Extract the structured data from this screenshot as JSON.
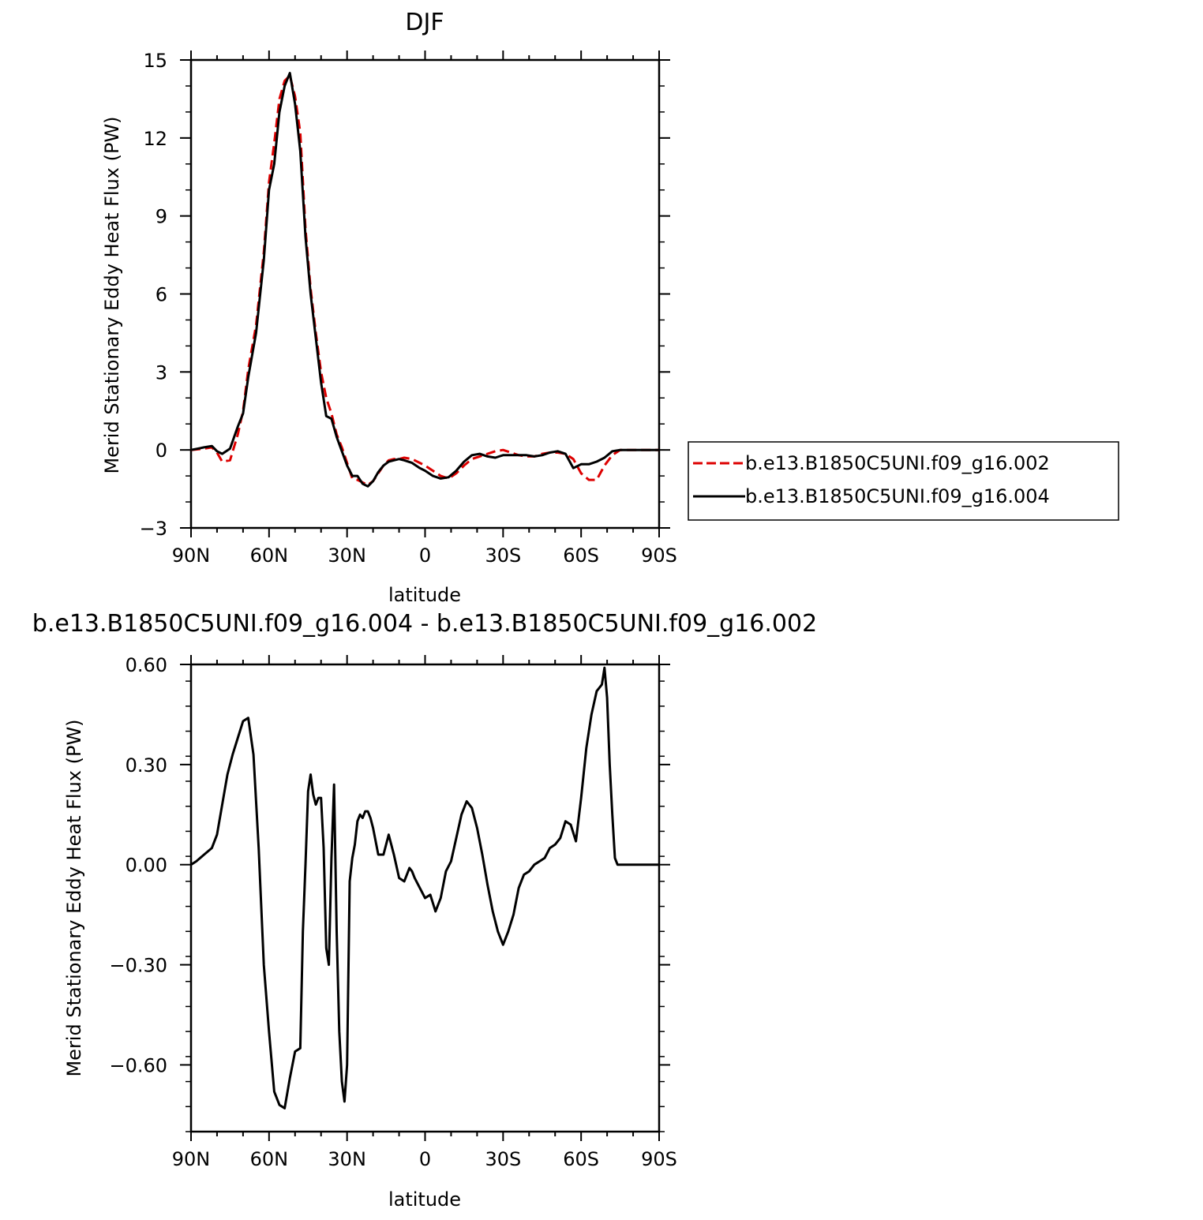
{
  "charts": [
    {
      "title": "DJF",
      "xlabel": "latitude",
      "ylabel": "Merid Stationary Eddy Heat Flux (PW)",
      "xticks": [
        "90N",
        "60N",
        "30N",
        "0",
        "30S",
        "60S",
        "90S"
      ],
      "yticks": [
        "-3",
        "0",
        "3",
        "6",
        "9",
        "12",
        "15"
      ]
    },
    {
      "title": "b.e13.B1850C5UNI.f09_g16.004 - b.e13.B1850C5UNI.f09_g16.002",
      "xlabel": "latitude",
      "ylabel": "Merid Stationary Eddy Heat Flux (PW)",
      "xticks": [
        "90N",
        "60N",
        "30N",
        "0",
        "30S",
        "60S",
        "90S"
      ],
      "yticks": [
        "-0.60",
        "-0.30",
        "0.00",
        "0.30",
        "0.60"
      ]
    }
  ],
  "legend": {
    "items": [
      {
        "label": "b.e13.B1850C5UNI.f09_g16.002",
        "color": "#dd0000",
        "dash": "dashed"
      },
      {
        "label": "b.e13.B1850C5UNI.f09_g16.004",
        "color": "#000000",
        "dash": "solid"
      }
    ]
  },
  "chart_data": [
    {
      "type": "line",
      "title": "DJF",
      "xlabel": "latitude",
      "ylabel": "Merid Stationary Eddy Heat Flux (PW)",
      "xlim": [
        90,
        -90
      ],
      "ylim": [
        -3,
        15
      ],
      "legend_position": "right",
      "series": [
        {
          "name": "b.e13.B1850C5UNI.f09_g16.002",
          "color": "#dd0000",
          "dash": "dashed",
          "x": [
            90,
            85,
            82,
            80,
            78,
            75,
            72,
            70,
            68,
            65,
            62,
            60,
            58,
            56,
            54,
            52,
            50,
            48,
            46,
            44,
            42,
            40,
            38,
            36,
            34,
            32,
            30,
            28,
            26,
            24,
            22,
            20,
            18,
            16,
            14,
            12,
            10,
            8,
            5,
            2,
            0,
            -3,
            -6,
            -9,
            -12,
            -15,
            -18,
            -21,
            -24,
            -27,
            -30,
            -33,
            -36,
            -39,
            -42,
            -45,
            -48,
            -51,
            -54,
            -57,
            -60,
            -63,
            -66,
            -69,
            -72,
            -75,
            -78,
            -81,
            -84,
            -87,
            -90
          ],
          "y": [
            0,
            0.05,
            0.1,
            -0.1,
            -0.45,
            -0.4,
            0.6,
            1.5,
            3.1,
            4.8,
            7.6,
            10.3,
            11.8,
            13.5,
            14.2,
            14.4,
            13.6,
            12.2,
            8.5,
            6.2,
            4.5,
            3.0,
            2.0,
            1.4,
            0.6,
            0.1,
            -0.5,
            -1.1,
            -1.15,
            -1.25,
            -1.35,
            -1.2,
            -0.9,
            -0.6,
            -0.4,
            -0.35,
            -0.35,
            -0.3,
            -0.35,
            -0.5,
            -0.6,
            -0.8,
            -1.0,
            -1.1,
            -0.9,
            -0.6,
            -0.35,
            -0.25,
            -0.15,
            -0.05,
            0.0,
            -0.1,
            -0.2,
            -0.25,
            -0.25,
            -0.15,
            -0.1,
            -0.1,
            -0.15,
            -0.35,
            -0.9,
            -1.15,
            -1.15,
            -0.6,
            -0.2,
            0.0,
            0.0,
            0.0,
            0.0,
            0.0,
            0.0
          ]
        },
        {
          "name": "b.e13.B1850C5UNI.f09_g16.004",
          "color": "#000000",
          "dash": "solid",
          "x": [
            90,
            85,
            82,
            80,
            78,
            75,
            72,
            70,
            68,
            65,
            62,
            60,
            58,
            56,
            54,
            52,
            50,
            48,
            46,
            44,
            42,
            40,
            38,
            36,
            34,
            32,
            30,
            28,
            26,
            24,
            22,
            20,
            18,
            16,
            14,
            12,
            10,
            8,
            5,
            2,
            0,
            -3,
            -6,
            -9,
            -12,
            -15,
            -18,
            -21,
            -24,
            -27,
            -30,
            -33,
            -36,
            -39,
            -42,
            -45,
            -48,
            -51,
            -54,
            -57,
            -60,
            -63,
            -66,
            -69,
            -72,
            -75,
            -78,
            -81,
            -84,
            -87,
            -90
          ],
          "y": [
            0,
            0.1,
            0.15,
            -0.05,
            -0.15,
            0.05,
            0.9,
            1.4,
            2.8,
            4.5,
            7.3,
            10.0,
            11.0,
            13.0,
            14.0,
            14.5,
            13.3,
            11.5,
            8.2,
            6.0,
            4.3,
            2.6,
            1.3,
            1.2,
            0.5,
            -0.05,
            -0.6,
            -1.0,
            -1.0,
            -1.3,
            -1.4,
            -1.2,
            -0.85,
            -0.6,
            -0.45,
            -0.4,
            -0.35,
            -0.4,
            -0.5,
            -0.7,
            -0.8,
            -1.0,
            -1.1,
            -1.05,
            -0.8,
            -0.45,
            -0.2,
            -0.15,
            -0.25,
            -0.3,
            -0.2,
            -0.2,
            -0.2,
            -0.2,
            -0.25,
            -0.2,
            -0.1,
            -0.05,
            -0.15,
            -0.7,
            -0.55,
            -0.55,
            -0.45,
            -0.3,
            -0.05,
            0.0,
            0.0,
            0.0,
            0.0,
            0.0,
            0.0
          ]
        }
      ]
    },
    {
      "type": "line",
      "title": "b.e13.B1850C5UNI.f09_g16.004 - b.e13.B1850C5UNI.f09_g16.002",
      "xlabel": "latitude",
      "ylabel": "Merid Stationary Eddy Heat Flux (PW)",
      "xlim": [
        90,
        -90
      ],
      "ylim": [
        -0.8,
        0.6
      ],
      "series": [
        {
          "color": "#000000",
          "dash": "solid",
          "x": [
            90,
            88,
            85,
            82,
            80,
            78,
            76,
            74,
            72,
            70,
            68,
            66,
            64,
            62,
            60,
            58,
            56,
            54,
            52,
            50,
            48,
            47,
            46,
            45,
            44,
            43,
            42,
            41,
            40,
            39,
            38,
            37,
            36,
            35,
            34,
            33,
            32,
            31,
            30,
            29,
            28,
            27,
            26,
            25,
            24,
            23,
            22,
            21,
            20,
            18,
            16,
            14,
            12,
            10,
            8,
            7,
            6,
            5,
            4,
            2,
            0,
            -2,
            -4,
            -6,
            -8,
            -10,
            -12,
            -14,
            -16,
            -18,
            -20,
            -22,
            -24,
            -26,
            -28,
            -30,
            -32,
            -34,
            -36,
            -38,
            -40,
            -42,
            -44,
            -46,
            -48,
            -50,
            -52,
            -54,
            -56,
            -58,
            -60,
            -62,
            -64,
            -66,
            -68,
            -69,
            -70,
            -71,
            -72,
            -73,
            -74,
            -75,
            -76,
            -77,
            -78,
            -79,
            -80,
            -81,
            -82,
            -83,
            -84,
            -85,
            -86,
            -87,
            -88,
            -90
          ],
          "y": [
            0,
            0.01,
            0.03,
            0.05,
            0.09,
            0.18,
            0.27,
            0.33,
            0.38,
            0.43,
            0.44,
            0.33,
            0.05,
            -0.3,
            -0.5,
            -0.68,
            -0.72,
            -0.73,
            -0.64,
            -0.56,
            -0.55,
            -0.2,
            0.0,
            0.22,
            0.27,
            0.21,
            0.18,
            0.2,
            0.2,
            0.05,
            -0.25,
            -0.3,
            0.02,
            0.24,
            -0.2,
            -0.5,
            -0.65,
            -0.71,
            -0.6,
            -0.05,
            0.02,
            0.06,
            0.13,
            0.15,
            0.14,
            0.16,
            0.16,
            0.14,
            0.11,
            0.03,
            0.03,
            0.09,
            0.03,
            -0.04,
            -0.05,
            -0.03,
            -0.01,
            -0.02,
            -0.04,
            -0.07,
            -0.1,
            -0.09,
            -0.14,
            -0.1,
            -0.02,
            0.01,
            0.08,
            0.15,
            0.19,
            0.17,
            0.11,
            0.03,
            -0.06,
            -0.14,
            -0.2,
            -0.24,
            -0.2,
            -0.15,
            -0.07,
            -0.03,
            -0.02,
            0.0,
            0.01,
            0.02,
            0.05,
            0.06,
            0.08,
            0.13,
            0.12,
            0.07,
            0.2,
            0.35,
            0.45,
            0.52,
            0.54,
            0.59,
            0.5,
            0.3,
            0.15,
            0.02,
            0.0,
            0.0,
            0.0,
            0.0,
            0.0,
            0.0,
            0.0,
            0.0,
            0.0,
            0.0,
            0.0,
            0.0,
            0.0,
            0.0,
            0.0,
            0.0
          ]
        }
      ]
    }
  ]
}
